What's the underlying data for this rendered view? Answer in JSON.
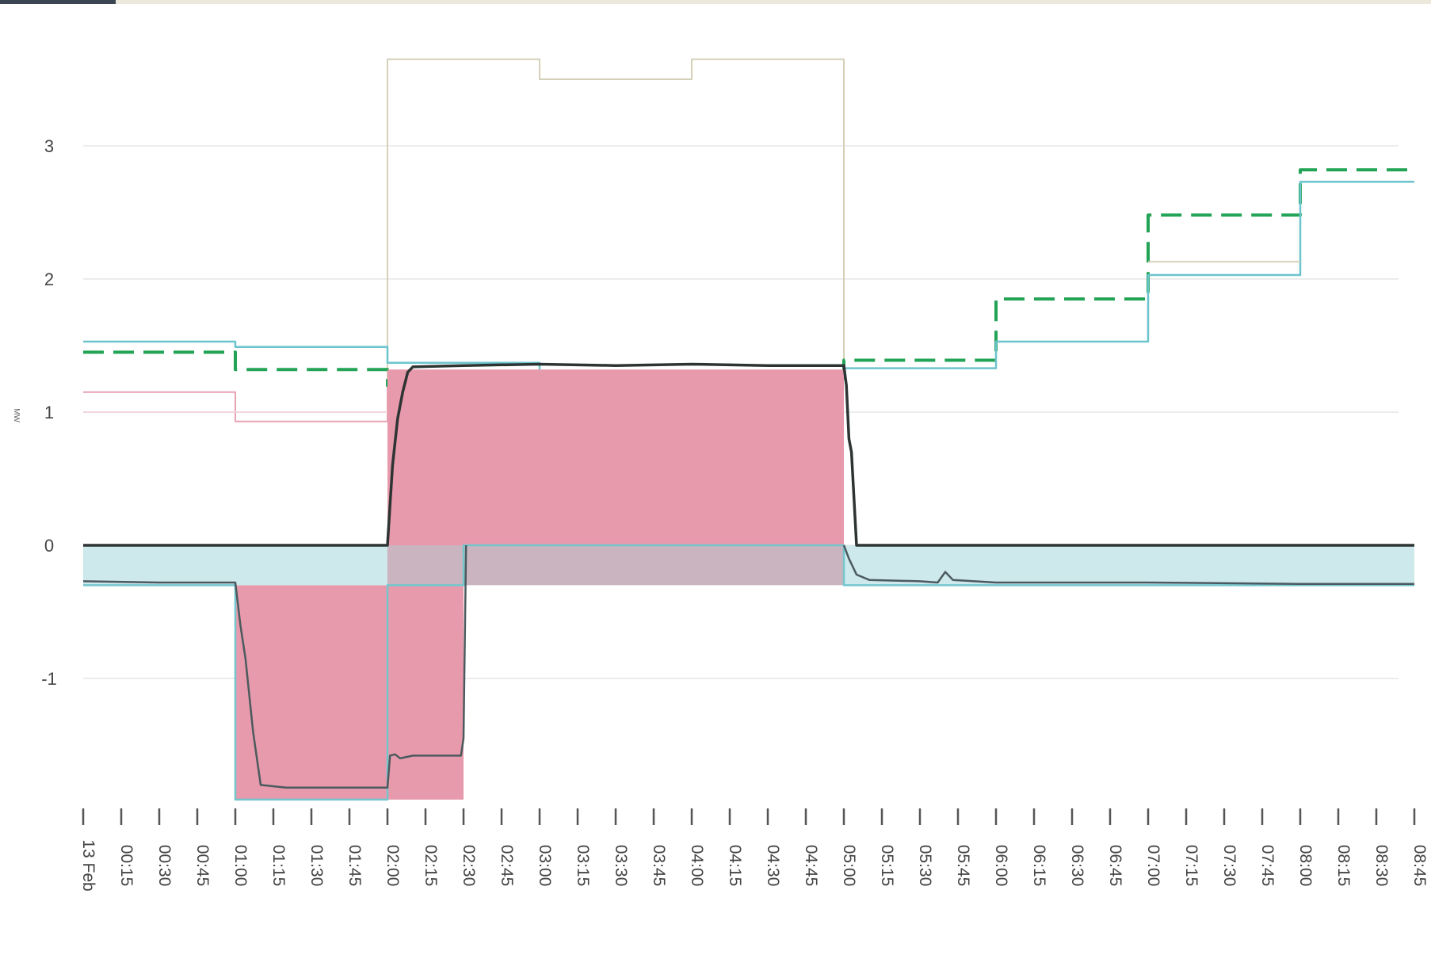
{
  "chart_data": {
    "type": "line",
    "title": "",
    "ylabel": "MW",
    "ylim": [
      -1.9,
      3.7
    ],
    "yticks": [
      3,
      2,
      1,
      0,
      -1
    ],
    "xrange": [
      "00:00",
      "08:45"
    ],
    "x_tick_labels": [
      "13 Feb",
      "00:15",
      "00:30",
      "00:45",
      "01:00",
      "01:15",
      "01:30",
      "01:45",
      "02:00",
      "02:15",
      "02:30",
      "02:45",
      "03:00",
      "03:15",
      "03:30",
      "03:45",
      "04:00",
      "04:15",
      "04:30",
      "04:45",
      "05:00",
      "05:15",
      "05:30",
      "05:45",
      "06:00",
      "06:15",
      "06:30",
      "06:45",
      "07:00",
      "07:15",
      "07:30",
      "07:45",
      "08:00",
      "08:15",
      "08:30",
      "08:45"
    ],
    "grid": true,
    "legend": "none",
    "series": [
      {
        "color": "#d5d0b8",
        "style": "step-thin",
        "points": [
          [
            "02:00",
            1.0
          ],
          [
            "02:00",
            3.65
          ],
          [
            "03:00",
            3.65
          ],
          [
            "03:00",
            3.5
          ],
          [
            "04:00",
            3.5
          ],
          [
            "04:00",
            3.65
          ],
          [
            "05:00",
            3.65
          ],
          [
            "05:00",
            1.35
          ]
        ]
      },
      {
        "color": "#e8a3b2",
        "style": "step-thin",
        "points": [
          [
            "00:00",
            1.15
          ],
          [
            "01:00",
            1.15
          ],
          [
            "01:00",
            0.93
          ],
          [
            "02:00",
            0.93
          ],
          [
            "02:00",
            1.2
          ],
          [
            "03:00",
            1.2
          ],
          [
            "03:00",
            0.93
          ]
        ]
      },
      {
        "color": "#f1d5dc",
        "style": "step-thin",
        "points": [
          [
            "00:00",
            1.0
          ],
          [
            "02:00",
            1.0
          ]
        ]
      },
      {
        "color": "#22a356",
        "style": "dashed-step",
        "points": [
          [
            "00:00",
            1.45
          ],
          [
            "01:00",
            1.45
          ],
          [
            "01:00",
            1.32
          ],
          [
            "02:00",
            1.32
          ],
          [
            "02:00",
            1.2
          ],
          [
            "03:00",
            1.2
          ],
          [
            "03:00",
            1.15
          ],
          [
            "04:00",
            1.15
          ],
          [
            "04:00",
            1.18
          ],
          [
            "05:00",
            1.18
          ],
          [
            "05:00",
            1.39
          ],
          [
            "06:00",
            1.39
          ],
          [
            "06:00",
            1.85
          ],
          [
            "07:00",
            1.85
          ],
          [
            "07:00",
            2.48
          ],
          [
            "08:00",
            2.48
          ],
          [
            "08:00",
            2.82
          ],
          [
            "08:45",
            2.82
          ]
        ]
      },
      {
        "color": "#6cc4cc",
        "style": "step",
        "points": [
          [
            "00:00",
            1.53
          ],
          [
            "01:00",
            1.53
          ],
          [
            "01:00",
            1.49
          ],
          [
            "02:00",
            1.49
          ],
          [
            "02:00",
            1.37
          ],
          [
            "03:00",
            1.37
          ],
          [
            "03:00",
            1.28
          ],
          [
            "05:00",
            1.28
          ],
          [
            "05:00",
            1.33
          ],
          [
            "06:00",
            1.33
          ],
          [
            "06:00",
            1.53
          ],
          [
            "07:00",
            1.53
          ],
          [
            "07:00",
            2.03
          ],
          [
            "08:00",
            2.03
          ],
          [
            "08:00",
            2.73
          ],
          [
            "08:45",
            2.73
          ]
        ]
      },
      {
        "color": "#d5d0b8",
        "style": "step-thin",
        "points": [
          [
            "07:00",
            2.13
          ],
          [
            "08:00",
            2.13
          ]
        ]
      },
      {
        "color": "#e79aab",
        "style": "fill",
        "points": [
          [
            "02:00",
            0
          ],
          [
            "02:00",
            1.32
          ],
          [
            "05:00",
            1.32
          ],
          [
            "05:00",
            0
          ]
        ]
      },
      {
        "color": "#e79aab",
        "style": "fill",
        "points": [
          [
            "01:00",
            -0.3
          ],
          [
            "01:00",
            -1.91
          ],
          [
            "02:30",
            -1.91
          ],
          [
            "02:30",
            -0.3
          ]
        ]
      },
      {
        "color": "#cde9ec",
        "style": "fill",
        "points": [
          [
            "00:00",
            0
          ],
          [
            "00:00",
            -0.3
          ],
          [
            "02:00",
            -0.3
          ],
          [
            "02:00",
            0
          ]
        ]
      },
      {
        "color": "#cde9ec",
        "style": "fill",
        "points": [
          [
            "05:00",
            0
          ],
          [
            "05:00",
            -0.3
          ],
          [
            "08:45",
            -0.3
          ],
          [
            "08:45",
            0
          ]
        ]
      },
      {
        "color": "#c9b4bf",
        "style": "fill",
        "points": [
          [
            "02:00",
            0
          ],
          [
            "02:00",
            -0.3
          ],
          [
            "05:00",
            -0.3
          ],
          [
            "05:00",
            0
          ]
        ]
      },
      {
        "color": "#74c6cd",
        "style": "step",
        "points": [
          [
            "00:00",
            -0.3
          ],
          [
            "01:00",
            -0.3
          ],
          [
            "01:00",
            -1.91
          ],
          [
            "02:00",
            -1.91
          ],
          [
            "02:00",
            -0.3
          ],
          [
            "02:30",
            -0.3
          ],
          [
            "02:30",
            0.0
          ],
          [
            "05:00",
            0.0
          ],
          [
            "05:00",
            -0.3
          ],
          [
            "08:45",
            -0.3
          ]
        ]
      },
      {
        "color": "#4b5a5e",
        "style": "measured",
        "points": [
          [
            "00:00",
            -0.27
          ],
          [
            "00:30",
            -0.28
          ],
          [
            "01:00",
            -0.28
          ],
          [
            "01:02",
            -0.6
          ],
          [
            "01:04",
            -0.85
          ],
          [
            "01:07",
            -1.4
          ],
          [
            "01:10",
            -1.8
          ],
          [
            "01:20",
            -1.82
          ],
          [
            "01:40",
            -1.82
          ],
          [
            "01:58",
            -1.82
          ],
          [
            "02:00",
            -1.82
          ],
          [
            "02:01",
            -1.58
          ],
          [
            "02:03",
            -1.57
          ],
          [
            "02:05",
            -1.6
          ],
          [
            "02:10",
            -1.58
          ],
          [
            "02:29",
            -1.58
          ],
          [
            "02:30",
            -1.45
          ],
          [
            "02:31",
            0.0
          ]
        ]
      },
      {
        "color": "#2e3434",
        "style": "measured-bold",
        "points": [
          [
            "00:00",
            0.0
          ],
          [
            "02:00",
            0.0
          ],
          [
            "02:02",
            0.6
          ],
          [
            "02:04",
            0.95
          ],
          [
            "02:06",
            1.15
          ],
          [
            "02:08",
            1.3
          ],
          [
            "02:10",
            1.34
          ],
          [
            "02:30",
            1.35
          ],
          [
            "03:00",
            1.36
          ],
          [
            "03:30",
            1.35
          ],
          [
            "04:00",
            1.36
          ],
          [
            "04:30",
            1.35
          ],
          [
            "05:00",
            1.35
          ],
          [
            "05:01",
            1.2
          ],
          [
            "05:02",
            0.8
          ],
          [
            "05:03",
            0.7
          ],
          [
            "05:05",
            0.0
          ],
          [
            "08:45",
            0.0
          ]
        ]
      },
      {
        "color": "#4b5a5e",
        "style": "measured",
        "points": [
          [
            "05:00",
            0.0
          ],
          [
            "05:02",
            -0.1
          ],
          [
            "05:05",
            -0.22
          ],
          [
            "05:10",
            -0.26
          ],
          [
            "05:30",
            -0.27
          ],
          [
            "05:37",
            -0.28
          ],
          [
            "05:40",
            -0.2
          ],
          [
            "05:43",
            -0.26
          ],
          [
            "06:00",
            -0.28
          ],
          [
            "07:00",
            -0.28
          ],
          [
            "08:00",
            -0.29
          ],
          [
            "08:45",
            -0.29
          ]
        ]
      }
    ]
  }
}
